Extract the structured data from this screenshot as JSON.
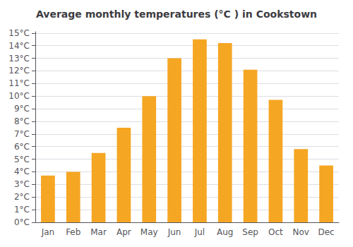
{
  "chart_data": {
    "type": "bar",
    "title": "Average monthly temperatures (°C ) in Cookstown",
    "categories": [
      "Jan",
      "Feb",
      "Mar",
      "Apr",
      "May",
      "Jun",
      "Jul",
      "Aug",
      "Sep",
      "Oct",
      "Nov",
      "Dec"
    ],
    "values": [
      3.7,
      4.0,
      5.5,
      7.5,
      10.0,
      13.0,
      14.5,
      14.2,
      12.1,
      9.7,
      5.8,
      4.5
    ],
    "color": "#F5A623",
    "ylim": [
      0,
      15.1
    ],
    "yticks": [
      {
        "value": 0,
        "label": "0°C"
      },
      {
        "value": 1,
        "label": "1°C"
      },
      {
        "value": 2,
        "label": "2°C"
      },
      {
        "value": 3,
        "label": "3°C"
      },
      {
        "value": 4,
        "label": "4°C"
      },
      {
        "value": 5,
        "label": "5°C"
      },
      {
        "value": 6,
        "label": "6°C"
      },
      {
        "value": 7,
        "label": "7°C"
      },
      {
        "value": 8,
        "label": "8°C"
      },
      {
        "value": 9,
        "label": "9°C"
      },
      {
        "value": 10,
        "label": "10°C"
      },
      {
        "value": 11,
        "label": "11°C"
      },
      {
        "value": 12,
        "label": "12°C"
      },
      {
        "value": 13,
        "label": "13°C"
      },
      {
        "value": 14,
        "label": "14°C"
      },
      {
        "value": 15,
        "label": "15°C"
      }
    ],
    "grid": true
  }
}
